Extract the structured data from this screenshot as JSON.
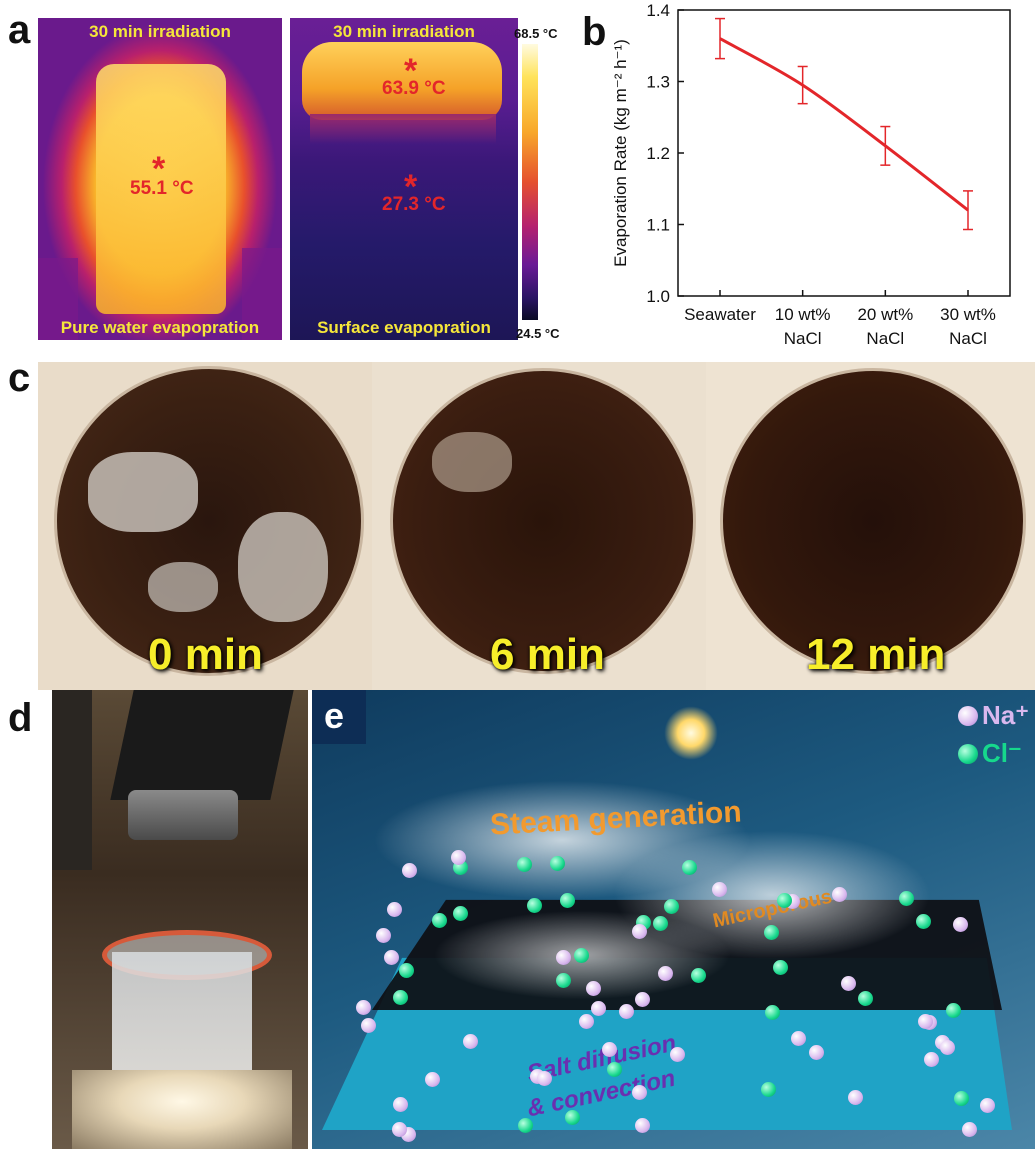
{
  "panels": {
    "a": "a",
    "b": "b",
    "c": "c",
    "d": "d",
    "e": "e"
  },
  "panel_a": {
    "left": {
      "top_caption": "30 min irradiation",
      "bottom_caption": "Pure water evapopration",
      "temp": "55.1 °C"
    },
    "right": {
      "top_caption": "30 min irradiation",
      "bottom_caption": "Surface evapopration",
      "temp_top": "63.9 °C",
      "temp_bottom": "27.3 °C"
    },
    "colorbar": {
      "max": "68.5 °C",
      "min": "24.5 °C"
    },
    "colors": {
      "accent_text": "#f5e63a",
      "marker": "#e3262a"
    }
  },
  "chart_data": {
    "type": "line",
    "categories": [
      "Seawater",
      "10 wt% NaCl",
      "20 wt% NaCl",
      "30 wt% NaCl"
    ],
    "tick_lines": [
      [
        "Seawater"
      ],
      [
        "10 wt%",
        "NaCl"
      ],
      [
        "20 wt%",
        "NaCl"
      ],
      [
        "30 wt%",
        "NaCl"
      ]
    ],
    "values": [
      1.36,
      1.295,
      1.21,
      1.12
    ],
    "errors": [
      0.028,
      0.026,
      0.027,
      0.027
    ],
    "ylabel": "Evaporation Rate (kg m⁻² h⁻¹)",
    "ylim": [
      1.0,
      1.4
    ],
    "yticks": [
      "1.0",
      "1.1",
      "1.2",
      "1.3",
      "1.4"
    ],
    "ytick_values": [
      1.0,
      1.1,
      1.2,
      1.3,
      1.4
    ],
    "color": "#e3262a",
    "grid": false
  },
  "panel_c": {
    "times": [
      "0 min",
      "6 min",
      "12 min"
    ]
  },
  "panel_e": {
    "legend": {
      "na": "Na⁺",
      "cl": "Cl⁻"
    },
    "labels": {
      "steam": "Steam generation",
      "micro": "Microporous",
      "salt1": "Salt diffusion",
      "salt2": "& convection"
    },
    "colors": {
      "na": "#d9b8ee",
      "cl": "#16d88c",
      "label_steam": "#f29a2e",
      "label_salt": "#6a2fb0"
    }
  }
}
